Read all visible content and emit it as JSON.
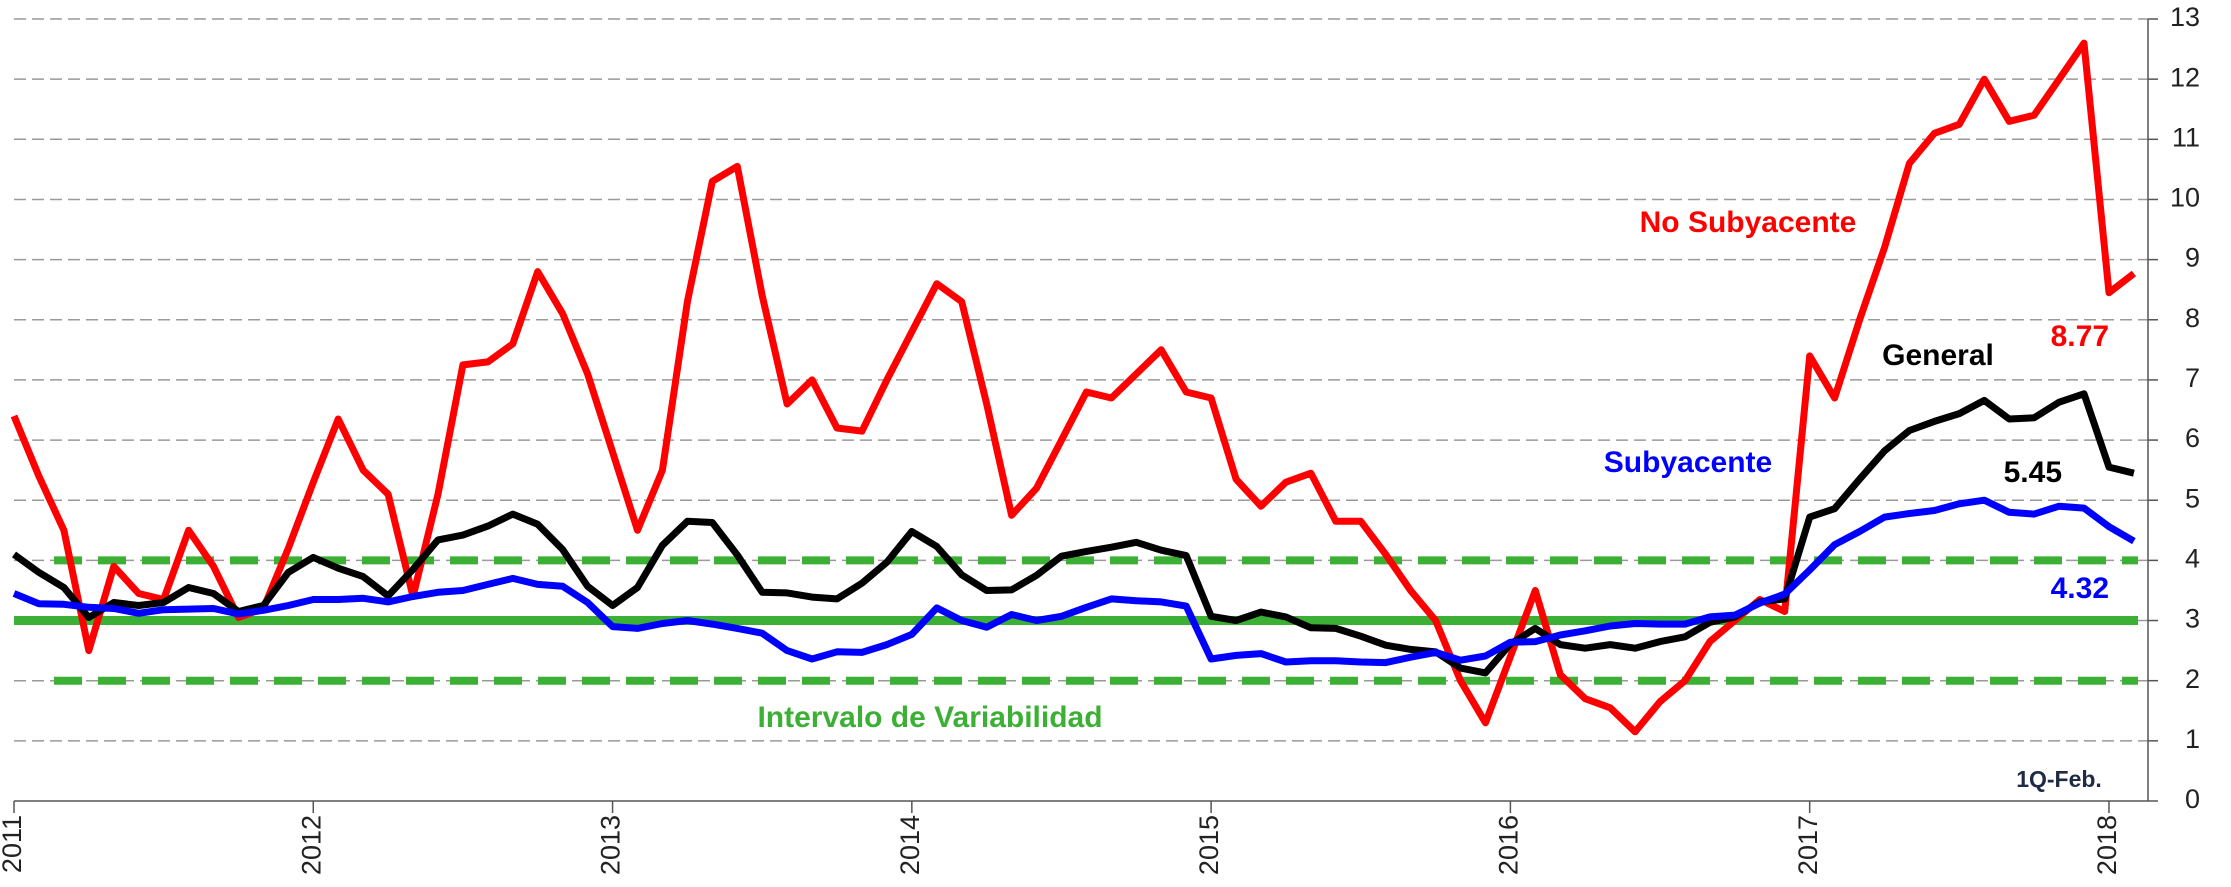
{
  "chart_data": {
    "type": "line",
    "categories": [
      "2011",
      null,
      null,
      null,
      null,
      null,
      null,
      null,
      null,
      null,
      null,
      null,
      "2012",
      null,
      null,
      null,
      null,
      null,
      null,
      null,
      null,
      null,
      null,
      null,
      "2013",
      null,
      null,
      null,
      null,
      null,
      null,
      null,
      null,
      null,
      null,
      null,
      "2014",
      null,
      null,
      null,
      null,
      null,
      null,
      null,
      null,
      null,
      null,
      null,
      "2015",
      null,
      null,
      null,
      null,
      null,
      null,
      null,
      null,
      null,
      null,
      null,
      "2016",
      null,
      null,
      null,
      null,
      null,
      null,
      null,
      null,
      null,
      null,
      null,
      "2017",
      null,
      null,
      null,
      null,
      null,
      null,
      null,
      null,
      null,
      null,
      null,
      "2018",
      null
    ],
    "series": [
      {
        "name": "No Subyacente",
        "color": "#ff0000",
        "values": [
          6.4,
          5.4,
          4.5,
          2.5,
          3.9,
          3.45,
          3.35,
          4.5,
          3.9,
          3.05,
          3.2,
          4.2,
          5.3,
          6.35,
          5.5,
          5.1,
          3.4,
          5.1,
          7.25,
          7.3,
          7.6,
          8.8,
          8.1,
          7.1,
          5.8,
          4.5,
          5.5,
          8.3,
          10.3,
          10.55,
          8.4,
          6.6,
          7.0,
          6.2,
          6.15,
          7.0,
          7.8,
          8.6,
          8.3,
          6.6,
          4.75,
          5.2,
          6.0,
          6.8,
          6.7,
          7.1,
          7.5,
          6.8,
          6.7,
          5.35,
          4.9,
          5.3,
          5.45,
          4.65,
          4.65,
          4.1,
          3.5,
          3.0,
          2.0,
          1.3,
          2.4,
          3.5,
          2.1,
          1.7,
          1.55,
          1.15,
          1.65,
          2.0,
          2.65,
          3.0,
          3.35,
          3.15,
          7.4,
          6.7,
          8.0,
          9.2,
          10.6,
          11.1,
          11.25,
          12.0,
          11.3,
          11.4,
          12.0,
          12.6,
          8.45,
          8.77
        ]
      },
      {
        "name": "General",
        "color": "#000000",
        "values": [
          4.1,
          3.8,
          3.55,
          3.05,
          3.3,
          3.25,
          3.3,
          3.55,
          3.45,
          3.15,
          3.25,
          3.8,
          4.05,
          3.87,
          3.73,
          3.41,
          3.85,
          4.34,
          4.42,
          4.57,
          4.77,
          4.6,
          4.18,
          3.57,
          3.25,
          3.55,
          4.25,
          4.65,
          4.63,
          4.09,
          3.47,
          3.46,
          3.39,
          3.36,
          3.62,
          3.97,
          4.48,
          4.23,
          3.76,
          3.5,
          3.51,
          3.75,
          4.07,
          4.15,
          4.22,
          4.3,
          4.17,
          4.08,
          3.07,
          3.0,
          3.14,
          3.06,
          2.88,
          2.87,
          2.74,
          2.59,
          2.52,
          2.48,
          2.21,
          2.13,
          2.61,
          2.87,
          2.6,
          2.54,
          2.6,
          2.54,
          2.65,
          2.73,
          2.97,
          3.06,
          3.31,
          3.36,
          4.72,
          4.86,
          5.35,
          5.82,
          6.16,
          6.31,
          6.44,
          6.66,
          6.35,
          6.37,
          6.63,
          6.77,
          5.55,
          5.45
        ]
      },
      {
        "name": "Subyacente",
        "color": "#0000ff",
        "values": [
          3.45,
          3.28,
          3.27,
          3.22,
          3.2,
          3.12,
          3.18,
          3.19,
          3.2,
          3.11,
          3.17,
          3.25,
          3.35,
          3.35,
          3.37,
          3.31,
          3.4,
          3.47,
          3.5,
          3.6,
          3.7,
          3.6,
          3.57,
          3.3,
          2.9,
          2.87,
          2.95,
          3.0,
          2.94,
          2.87,
          2.79,
          2.5,
          2.36,
          2.48,
          2.47,
          2.6,
          2.77,
          3.21,
          3.0,
          2.89,
          3.1,
          3.0,
          3.07,
          3.22,
          3.36,
          3.33,
          3.31,
          3.24,
          2.36,
          2.42,
          2.45,
          2.31,
          2.33,
          2.33,
          2.31,
          2.3,
          2.39,
          2.47,
          2.34,
          2.41,
          2.64,
          2.65,
          2.76,
          2.83,
          2.91,
          2.95,
          2.94,
          2.94,
          3.06,
          3.09,
          3.29,
          3.44,
          3.84,
          4.26,
          4.48,
          4.72,
          4.78,
          4.83,
          4.94,
          5.0,
          4.8,
          4.77,
          4.9,
          4.87,
          4.56,
          4.32
        ]
      }
    ],
    "ylim": [
      0,
      13
    ],
    "yticks": [
      0,
      1,
      2,
      3,
      4,
      5,
      6,
      7,
      8,
      9,
      10,
      11,
      12,
      13
    ],
    "grid": true,
    "target": {
      "value": 3,
      "color": "#3cb034"
    },
    "band": {
      "values": [
        2,
        4
      ],
      "label": "Intervalo de Variabilidad",
      "color": "#3cb034"
    },
    "annotation": "1Q-Feb."
  }
}
